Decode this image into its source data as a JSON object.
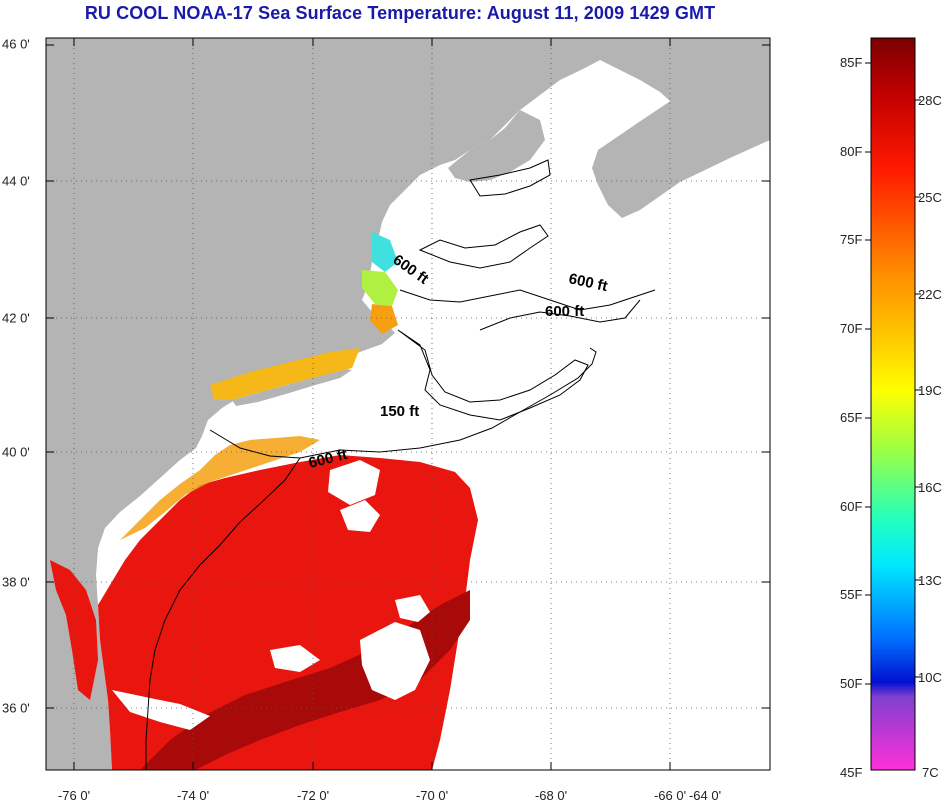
{
  "title": "RU COOL  NOAA-17  Sea Surface Temperature:  August 11, 2009 1429 GMT",
  "lat_labels": [
    "46 0'",
    "44 0'",
    "42 0'",
    "40 0'",
    "38 0'",
    "36 0'"
  ],
  "lon_labels": [
    "-76 0'",
    "-74 0'",
    "-72 0'",
    "-70 0'",
    "-68 0'",
    "-66 0'",
    "-64 0'"
  ],
  "depth_labels": [
    "600 ft",
    "600 ft",
    "600 ft",
    "150 ft",
    "600 ft"
  ],
  "colorbar": {
    "fahrenheit": [
      "85F",
      "80F",
      "75F",
      "70F",
      "65F",
      "60F",
      "55F",
      "50F",
      "45F"
    ],
    "celsius": [
      "28C",
      "25C",
      "22C",
      "19C",
      "16C",
      "13C",
      "10C",
      "7C"
    ]
  },
  "colors": {
    "land": "#b4b4b4",
    "cloud": "#ffffff",
    "title": "#1a1aa8",
    "sst_warm": "#e8160e",
    "sst_hot": "#a80a0a",
    "sst_mid": "#f5a010"
  }
}
